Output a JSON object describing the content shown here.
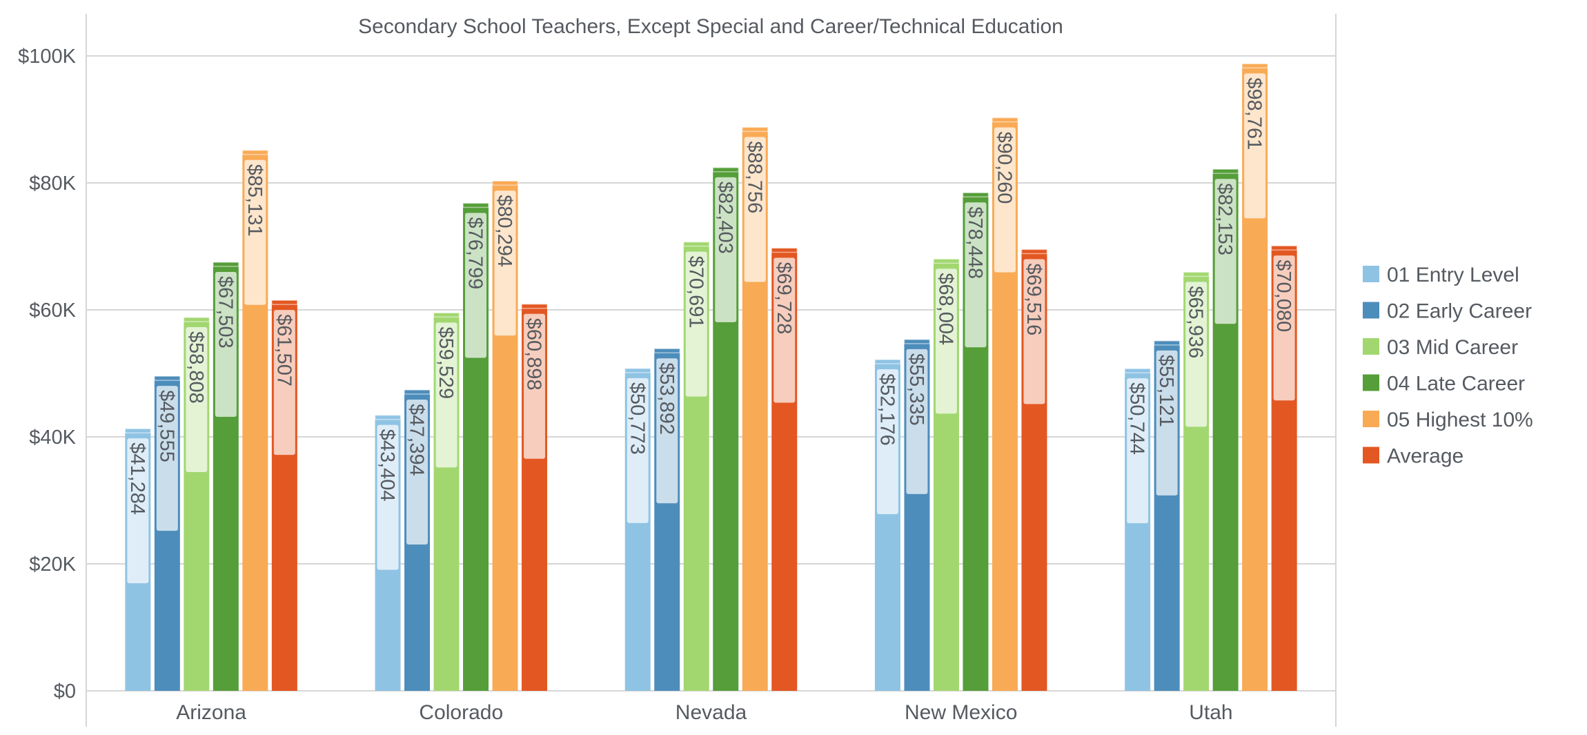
{
  "chart_data": {
    "type": "bar",
    "title": "Secondary School Teachers, Except Special and Career/Technical Education",
    "xlabel": "",
    "ylabel": "",
    "ylim": [
      0,
      100000
    ],
    "y_ticks": [
      0,
      20000,
      40000,
      60000,
      80000,
      100000
    ],
    "y_tick_labels": [
      "$0",
      "$20K",
      "$40K",
      "$60K",
      "$80K",
      "$100K"
    ],
    "grid": true,
    "legend_position": "right",
    "categories": [
      "Arizona",
      "Colorado",
      "Nevada",
      "New Mexico",
      "Utah"
    ],
    "series": [
      {
        "name": "01 Entry Level",
        "color": "#8fc3e4",
        "values": [
          41284,
          43404,
          50773,
          52176,
          50744
        ],
        "labels": [
          "$41,284",
          "$43,404",
          "$50,773",
          "$52,176",
          "$50,744"
        ]
      },
      {
        "name": "02 Early Career",
        "color": "#4d8dbb",
        "values": [
          49555,
          47394,
          53892,
          55335,
          55121
        ],
        "labels": [
          "$49,555",
          "$47,394",
          "$53,892",
          "$55,335",
          "$55,121"
        ]
      },
      {
        "name": "03 Mid Career",
        "color": "#a2d770",
        "values": [
          58808,
          59529,
          70691,
          68004,
          65936
        ],
        "labels": [
          "$58,808",
          "$59,529",
          "$70,691",
          "$68,004",
          "$65,936"
        ]
      },
      {
        "name": "04 Late Career",
        "color": "#559e39",
        "values": [
          67503,
          76799,
          82403,
          78448,
          82153
        ],
        "labels": [
          "$67,503",
          "$76,799",
          "$82,403",
          "$78,448",
          "$82,153"
        ]
      },
      {
        "name": "05 Highest 10%",
        "color": "#f9aa55",
        "values": [
          85131,
          80294,
          88756,
          90260,
          98761
        ],
        "labels": [
          "$85,131",
          "$80,294",
          "$88,756",
          "$90,260",
          "$98,761"
        ]
      },
      {
        "name": "Average",
        "color": "#e35722",
        "values": [
          61507,
          60898,
          69728,
          69516,
          70080
        ],
        "labels": [
          "$61,507",
          "$60,898",
          "$69,728",
          "$69,516",
          "$70,080"
        ]
      }
    ]
  }
}
